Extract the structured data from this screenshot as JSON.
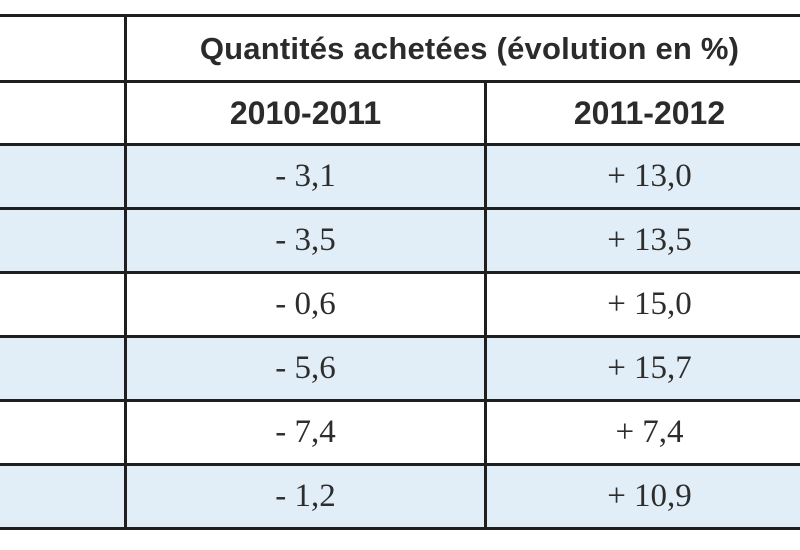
{
  "table": {
    "title": "Quantités achetées (évolution en %)",
    "columns": [
      "2010-2011",
      "2011-2012"
    ],
    "rows": [
      {
        "label": "",
        "values": [
          "- 3,1",
          "+ 13,0"
        ],
        "shaded": true
      },
      {
        "label": "",
        "values": [
          "- 3,5",
          "+ 13,5"
        ],
        "shaded": true
      },
      {
        "label": "",
        "values": [
          "- 0,6",
          "+ 15,0"
        ],
        "shaded": false
      },
      {
        "label": "",
        "values": [
          "- 5,6",
          "+ 15,7"
        ],
        "shaded": true
      },
      {
        "label": "",
        "values": [
          "- 7,4",
          "+ 7,4"
        ],
        "shaded": false
      },
      {
        "label": "",
        "values": [
          "- 1,2",
          "+ 10,9"
        ],
        "shaded": true
      }
    ]
  },
  "colors": {
    "shaded_row": "#e1eef7",
    "border": "#1f1f1f",
    "text": "#2b2b2b"
  }
}
